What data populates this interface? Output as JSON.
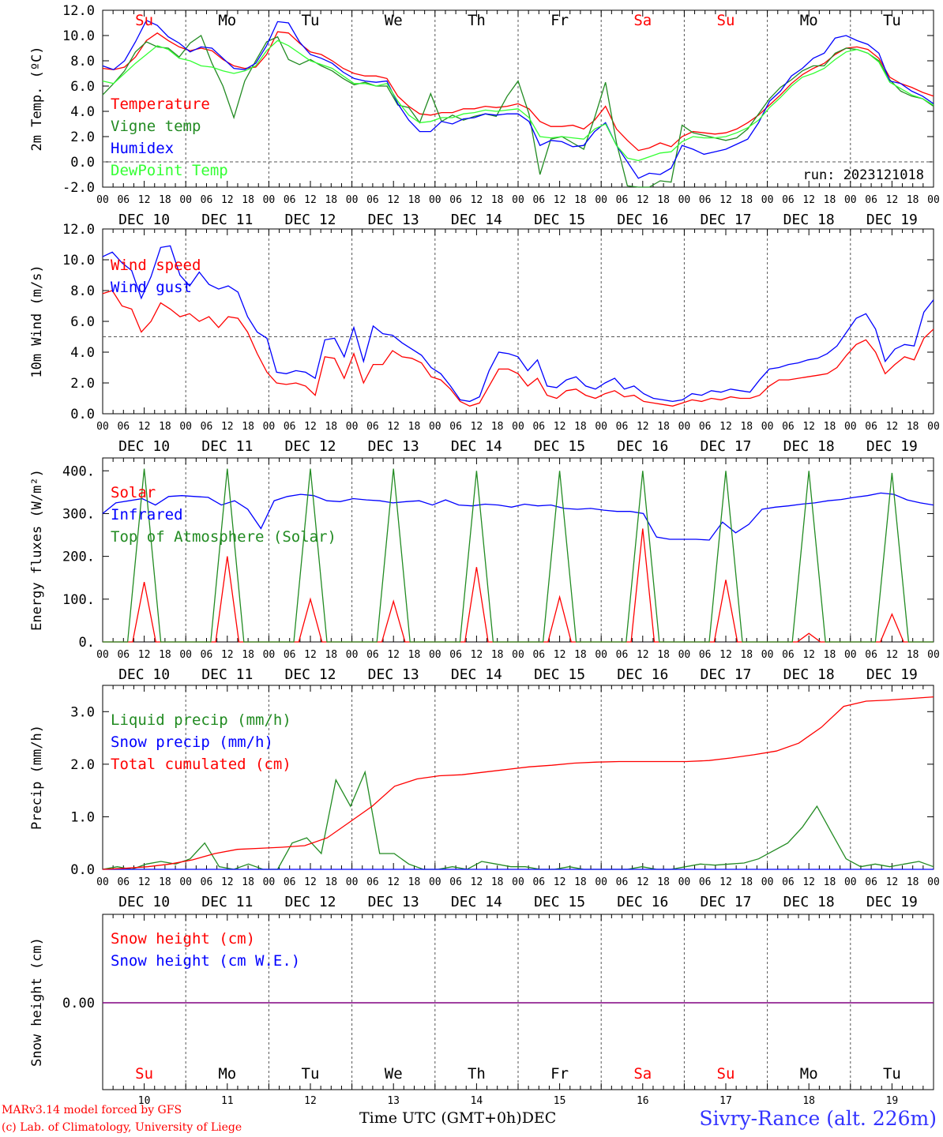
{
  "chart_data": [
    {
      "type": "line",
      "ylabel": "2m Temp. (ºC)",
      "ylim": [
        -2,
        12
      ],
      "yticks": [
        "12.0",
        "10.0",
        "8.0",
        "6.0",
        "4.0",
        "2.0",
        "0.0",
        "-2.0"
      ],
      "reference_line": 0,
      "annotation": "run: 2023121018",
      "series": [
        {
          "name": "Temperature",
          "color": "#ff0000",
          "values": [
            7.4,
            7.3,
            7.5,
            8.3,
            9.6,
            10.2,
            9.6,
            9.1,
            8.8,
            9.0,
            8.8,
            8.1,
            7.6,
            7.4,
            7.5,
            8.5,
            10.3,
            10.2,
            9.4,
            8.7,
            8.5,
            8.0,
            7.4,
            7.0,
            6.8,
            6.8,
            6.6,
            5.2,
            4.4,
            3.8,
            3.7,
            3.9,
            3.9,
            4.2,
            4.2,
            4.4,
            4.3,
            4.4,
            4.6,
            4.2,
            3.2,
            2.8,
            2.8,
            2.9,
            2.6,
            3.3,
            4.4,
            2.6,
            1.7,
            0.9,
            1.1,
            1.5,
            1.2,
            2.0,
            2.4,
            2.3,
            2.2,
            2.3,
            2.6,
            3.1,
            3.7,
            4.5,
            5.3,
            6.2,
            6.9,
            7.4,
            7.8,
            8.5,
            9.0,
            9.1,
            8.9,
            8.2,
            6.7,
            6.2,
            5.9,
            5.5,
            5.2
          ]
        },
        {
          "name": "Vigne temp",
          "color": "#228b22",
          "values": [
            5.3,
            6.2,
            7.2,
            8.7,
            9.5,
            9.1,
            9.0,
            8.3,
            9.4,
            10.0,
            7.8,
            6.0,
            3.5,
            6.4,
            8.0,
            9.5,
            9.9,
            8.1,
            7.7,
            8.1,
            7.6,
            7.2,
            6.6,
            6.1,
            6.3,
            6.0,
            6.0,
            4.5,
            4.3,
            3.1,
            5.4,
            3.2,
            3.7,
            3.3,
            3.6,
            3.8,
            3.6,
            5.2,
            6.4,
            3.8,
            -1.0,
            1.8,
            2.0,
            1.5,
            1.0,
            3.5,
            6.3,
            1.5,
            -1.9,
            -2.0,
            -2.0,
            -1.5,
            -1.6,
            2.9,
            2.3,
            2.1,
            1.9,
            1.7,
            1.9,
            2.6,
            3.8,
            5.0,
            5.9,
            6.5,
            7.2,
            7.6,
            7.6,
            8.6,
            9.0,
            8.9,
            8.6,
            8.0,
            6.5,
            5.6,
            5.2,
            5.0,
            4.4
          ]
        },
        {
          "name": "Humidex",
          "color": "#0000ff",
          "values": [
            7.6,
            7.3,
            8.0,
            9.5,
            11.2,
            10.8,
            9.9,
            9.4,
            8.7,
            9.1,
            9.0,
            8.2,
            7.4,
            7.3,
            7.8,
            9.2,
            11.1,
            11.0,
            9.5,
            8.5,
            8.2,
            7.8,
            7.1,
            6.6,
            6.4,
            6.3,
            6.4,
            4.6,
            3.3,
            2.4,
            2.4,
            3.2,
            3.0,
            3.4,
            3.5,
            3.8,
            3.7,
            3.8,
            3.8,
            3.2,
            1.3,
            1.7,
            1.6,
            1.2,
            1.3,
            2.4,
            3.1,
            1.3,
            0.0,
            -1.3,
            -0.9,
            -1.0,
            -0.5,
            1.3,
            1.0,
            0.6,
            0.8,
            1.0,
            1.4,
            1.8,
            3.1,
            4.8,
            5.6,
            6.8,
            7.4,
            8.2,
            8.6,
            9.8,
            10.0,
            9.6,
            9.3,
            8.6,
            6.4,
            6.2,
            5.6,
            5.2,
            4.6
          ]
        },
        {
          "name": "DewPoint Temp",
          "color": "#33ff33",
          "values": [
            6.4,
            6.2,
            7.0,
            7.8,
            8.5,
            9.2,
            8.9,
            8.2,
            8.0,
            7.6,
            7.5,
            7.2,
            7.0,
            7.2,
            7.6,
            8.8,
            9.6,
            9.2,
            8.6,
            8.0,
            7.7,
            7.4,
            6.8,
            6.2,
            6.2,
            6.0,
            6.2,
            4.8,
            3.7,
            3.1,
            3.2,
            3.5,
            3.5,
            3.8,
            3.9,
            4.1,
            4.0,
            4.1,
            4.2,
            3.5,
            2.0,
            1.9,
            2.0,
            1.9,
            1.8,
            2.6,
            3.0,
            1.3,
            0.3,
            0.1,
            0.4,
            0.7,
            0.8,
            1.6,
            2.0,
            1.9,
            1.9,
            2.0,
            2.3,
            2.7,
            3.3,
            4.3,
            5.1,
            6.0,
            6.7,
            7.0,
            7.4,
            8.1,
            8.7,
            8.9,
            8.6,
            7.9,
            6.3,
            5.8,
            5.3,
            5.0,
            4.5
          ]
        }
      ]
    },
    {
      "type": "line",
      "ylabel": "10m Wind (m/s)",
      "ylim": [
        0,
        12
      ],
      "yticks": [
        "12.0",
        "10.0",
        "8.0",
        "6.0",
        "4.0",
        "2.0",
        "0.0"
      ],
      "reference_line": 5,
      "series": [
        {
          "name": "Wind speed",
          "color": "#ff0000",
          "values": [
            7.8,
            8.0,
            7.0,
            6.8,
            5.3,
            6.0,
            7.2,
            6.8,
            6.3,
            6.5,
            6.0,
            6.3,
            5.6,
            6.3,
            6.2,
            5.3,
            3.9,
            2.7,
            2.0,
            1.9,
            2.0,
            1.8,
            1.2,
            3.7,
            3.6,
            2.3,
            3.9,
            2.0,
            3.2,
            3.2,
            4.1,
            3.7,
            3.6,
            3.3,
            2.4,
            2.2,
            1.6,
            0.8,
            0.5,
            0.7,
            1.8,
            2.9,
            2.9,
            2.6,
            1.8,
            2.3,
            1.2,
            1.0,
            1.5,
            1.6,
            1.2,
            1.0,
            1.3,
            1.5,
            1.1,
            1.2,
            0.8,
            0.7,
            0.6,
            0.5,
            0.7,
            0.9,
            0.8,
            1.0,
            0.9,
            1.1,
            1.0,
            1.0,
            1.2,
            1.8,
            2.2,
            2.2,
            2.3,
            2.4,
            2.5,
            2.6,
            3.0,
            3.8,
            4.5,
            4.8,
            4.0,
            2.6,
            3.2,
            3.7,
            3.5,
            4.9,
            5.5
          ]
        },
        {
          "name": "Wind gust",
          "color": "#0000ff",
          "values": [
            10.2,
            10.5,
            9.8,
            9.3,
            7.5,
            8.9,
            10.8,
            10.9,
            9.0,
            8.3,
            9.2,
            8.4,
            8.1,
            8.3,
            7.9,
            6.3,
            5.3,
            4.9,
            2.7,
            2.6,
            2.8,
            2.7,
            2.3,
            4.8,
            4.9,
            3.7,
            5.6,
            3.4,
            5.7,
            5.2,
            5.1,
            4.6,
            4.2,
            3.8,
            3.0,
            2.6,
            1.8,
            0.9,
            0.8,
            1.1,
            2.8,
            4.0,
            3.9,
            3.7,
            2.8,
            3.5,
            1.8,
            1.7,
            2.2,
            2.4,
            1.8,
            1.6,
            2.0,
            2.3,
            1.6,
            1.8,
            1.3,
            1.0,
            0.9,
            0.8,
            0.9,
            1.3,
            1.2,
            1.5,
            1.4,
            1.6,
            1.5,
            1.4,
            2.2,
            2.9,
            3.0,
            3.2,
            3.3,
            3.5,
            3.6,
            3.9,
            4.4,
            5.3,
            6.2,
            6.5,
            5.5,
            3.4,
            4.2,
            4.5,
            4.4,
            6.6,
            7.4
          ]
        }
      ]
    },
    {
      "type": "line",
      "ylabel": "Energy fluxes (W/m²)",
      "ylim": [
        0,
        430
      ],
      "yticks": [
        "400.",
        "300.",
        "200.",
        "100.",
        "0."
      ],
      "series": [
        {
          "name": "Solar",
          "color": "#ff0000",
          "peaks": [
            140,
            200,
            100,
            95,
            175,
            105,
            265,
            145,
            20,
            65
          ]
        },
        {
          "name": "Infrared",
          "color": "#0000ff",
          "values": [
            300,
            325,
            330,
            335,
            320,
            340,
            342,
            340,
            338,
            320,
            330,
            310,
            265,
            330,
            340,
            345,
            342,
            330,
            328,
            335,
            332,
            330,
            325,
            328,
            330,
            320,
            332,
            320,
            318,
            322,
            320,
            315,
            322,
            318,
            320,
            312,
            310,
            312,
            308,
            305,
            305,
            300,
            245,
            240,
            240,
            240,
            238,
            280,
            255,
            275,
            310,
            315,
            318,
            322,
            325,
            330,
            333,
            338,
            342,
            348,
            345,
            332,
            325,
            320
          ]
        },
        {
          "name": "Top of Atmosphere (Solar)",
          "color": "#228b22",
          "peaks": [
            405,
            405,
            405,
            405,
            400,
            400,
            400,
            400,
            400,
            395
          ]
        }
      ]
    },
    {
      "type": "line",
      "ylabel": "Precip (mm/h)",
      "ylim": [
        0,
        3.5
      ],
      "yticks": [
        "3.0",
        "2.0",
        "1.0",
        "0.0"
      ],
      "series": [
        {
          "name": "Liquid precip (mm/h)",
          "color": "#228b22",
          "values": [
            0.0,
            0.05,
            0.0,
            0.1,
            0.15,
            0.1,
            0.2,
            0.5,
            0.05,
            0.0,
            0.1,
            0.0,
            0.0,
            0.5,
            0.6,
            0.3,
            1.7,
            1.2,
            1.85,
            0.3,
            0.3,
            0.1,
            0.0,
            0.0,
            0.05,
            0.0,
            0.15,
            0.1,
            0.05,
            0.05,
            0.0,
            0.0,
            0.05,
            0.0,
            0.0,
            0.0,
            0.0,
            0.05,
            0.0,
            0.0,
            0.05,
            0.1,
            0.08,
            0.1,
            0.12,
            0.2,
            0.35,
            0.5,
            0.8,
            1.2,
            0.7,
            0.2,
            0.05,
            0.1,
            0.05,
            0.1,
            0.15,
            0.05
          ]
        },
        {
          "name": "Snow precip (mm/h)",
          "color": "#0000ff",
          "values": [
            0.0,
            0.0
          ]
        },
        {
          "name": "Total cumulated (cm)",
          "color": "#ff0000",
          "values": [
            0.0,
            0.02,
            0.05,
            0.1,
            0.18,
            0.3,
            0.38,
            0.4,
            0.42,
            0.45,
            0.6,
            0.9,
            1.2,
            1.58,
            1.72,
            1.78,
            1.8,
            1.85,
            1.9,
            1.95,
            1.98,
            2.02,
            2.04,
            2.05,
            2.05,
            2.05,
            2.05,
            2.07,
            2.12,
            2.18,
            2.25,
            2.4,
            2.7,
            3.1,
            3.2,
            3.22,
            3.25,
            3.28
          ]
        }
      ]
    },
    {
      "type": "line",
      "ylabel": "Snow height (cm)",
      "yticks": [
        "0.00"
      ],
      "series": [
        {
          "name": "Snow height (cm)",
          "color": "#ff0000",
          "values": [
            0.0,
            0.0
          ]
        },
        {
          "name": "Snow height (cm W.E.)",
          "color": "#0000ff",
          "values": [
            0.0,
            0.0
          ]
        }
      ]
    }
  ],
  "time_axis": {
    "hour_ticks": [
      "00",
      "06",
      "12",
      "18"
    ],
    "final_tick": "00",
    "dates": [
      "DEC 10",
      "DEC 11",
      "DEC 12",
      "DEC 13",
      "DEC 14",
      "DEC 15",
      "DEC 16",
      "DEC 17",
      "DEC 18",
      "DEC 19"
    ],
    "weekdays": [
      "Su",
      "Mo",
      "Tu",
      "We",
      "Th",
      "Fr",
      "Sa",
      "Su",
      "Mo",
      "Tu"
    ],
    "weekend_flags": [
      true,
      false,
      false,
      false,
      false,
      false,
      true,
      true,
      false,
      false
    ],
    "day_numbers": [
      "10",
      "11",
      "12",
      "13",
      "14",
      "15",
      "16",
      "17",
      "18",
      "19"
    ]
  },
  "footer": {
    "credit_line1": "MARv3.14 model forced by GFS",
    "credit_line2": "(c) Lab. of Climatology, University of Liege",
    "axis_title": "Time UTC (GMT+0h)",
    "axis_month": "DEC",
    "station": "Sivry-Rance (alt. 226m)"
  },
  "colors": {
    "weekend": "#ff0000",
    "weekday": "#000000",
    "station": "#3333ff"
  }
}
